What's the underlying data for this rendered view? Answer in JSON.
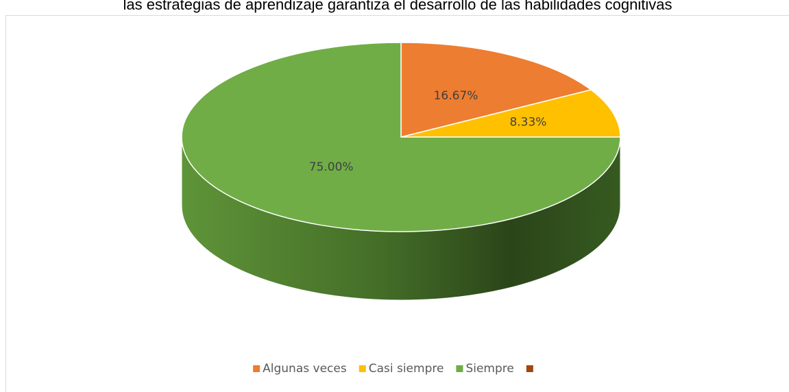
{
  "chart_data": {
    "type": "pie3d",
    "title": "las estrategias de aprendizaje garantiza el desarrollo de las habilidades cognitivas",
    "categories": [
      "Algunas veces",
      "Casi siempre",
      "Siempre",
      null
    ],
    "values": [
      16.67,
      8.33,
      75,
      0
    ],
    "value_labels": [
      "16.67%",
      "8.33%",
      "75.00%",
      null
    ],
    "colors": [
      "#ED7D31",
      "#FFC000",
      "#70AD47",
      "#9E480E"
    ],
    "legend": "bottom"
  }
}
